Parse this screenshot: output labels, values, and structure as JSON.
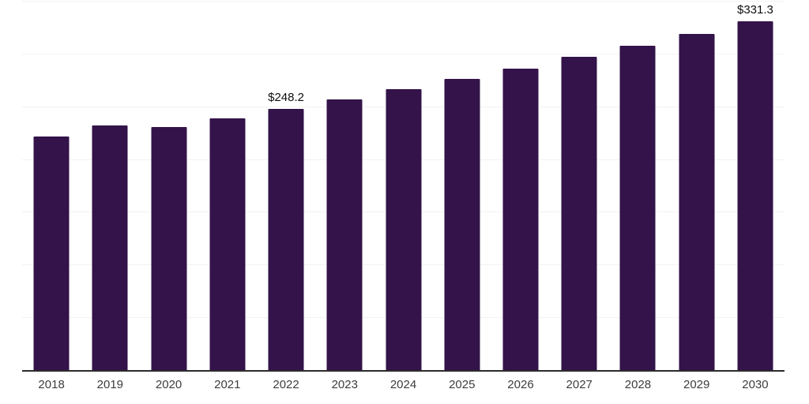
{
  "chart_data": {
    "type": "bar",
    "categories": [
      "2018",
      "2019",
      "2020",
      "2021",
      "2022",
      "2023",
      "2024",
      "2025",
      "2026",
      "2027",
      "2028",
      "2029",
      "2030"
    ],
    "values": [
      222.5,
      232.3,
      230.9,
      239.0,
      248.2,
      257.3,
      266.8,
      276.6,
      286.8,
      297.3,
      308.3,
      319.6,
      331.3
    ],
    "data_labels": [
      {
        "category": "2022",
        "text": "$248.2"
      },
      {
        "category": "2030",
        "text": "$331.3"
      }
    ],
    "title": "",
    "xlabel": "",
    "ylabel": "",
    "ylim": [
      0,
      350
    ],
    "gridline_step": 50,
    "grid": true,
    "legend": false,
    "y_tick_labels_visible": false,
    "colors": {
      "bar": "#331349",
      "axis_line": "#2b2b2b",
      "gridline": "#f2f2f3",
      "x_label": "#3d3d3d",
      "data_label": "#0d0d0d",
      "background": "#ffffff"
    }
  }
}
